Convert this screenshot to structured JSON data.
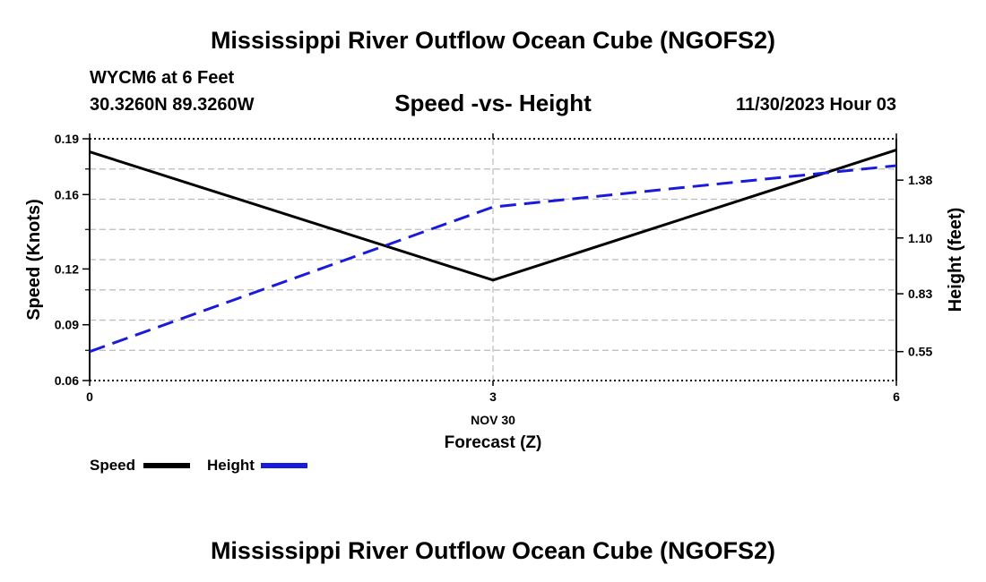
{
  "header": {
    "title": "Mississippi River Outflow Ocean Cube (NGOFS2)",
    "station": "WYCM6 at 6 Feet",
    "coords": "30.3260N  89.3260W",
    "subtitle": "Speed -vs- Height",
    "datetime": "11/30/2023 Hour 03"
  },
  "footer": {
    "title": "Mississippi River Outflow Ocean Cube (NGOFS2)"
  },
  "legend": {
    "speed_label": "Speed",
    "height_label": "Height"
  },
  "chart_data": {
    "type": "line",
    "title": "Speed -vs- Height",
    "x": [
      0,
      3,
      6
    ],
    "x_tick_labels": [
      "0",
      "3",
      "6"
    ],
    "x_date_label": "NOV 30",
    "xlabel": "Forecast (Z)",
    "xlim": [
      0,
      6
    ],
    "ylabel": "Speed (Knots)",
    "ylim": [
      0.06,
      0.19
    ],
    "y_ticks": [
      "0.06",
      "0.09",
      "0.12",
      "0.16",
      "0.19"
    ],
    "y_ticks_values": [
      0.06,
      0.09,
      0.12,
      0.16,
      0.19
    ],
    "y2label": "Height (feet)",
    "y2lim": [
      0.41,
      1.58
    ],
    "y2_ticks": [
      "0.55",
      "0.83",
      "1.10",
      "1.38"
    ],
    "y2_ticks_values": [
      0.55,
      0.83,
      1.1,
      1.38
    ],
    "grid": true,
    "series": [
      {
        "name": "Speed",
        "axis": "left",
        "color": "#000000",
        "style": "solid",
        "values": [
          0.183,
          0.114,
          0.184
        ]
      },
      {
        "name": "Height",
        "axis": "right",
        "color": "#1a1adc",
        "style": "dashed",
        "values": [
          0.55,
          1.25,
          1.45
        ]
      }
    ]
  }
}
